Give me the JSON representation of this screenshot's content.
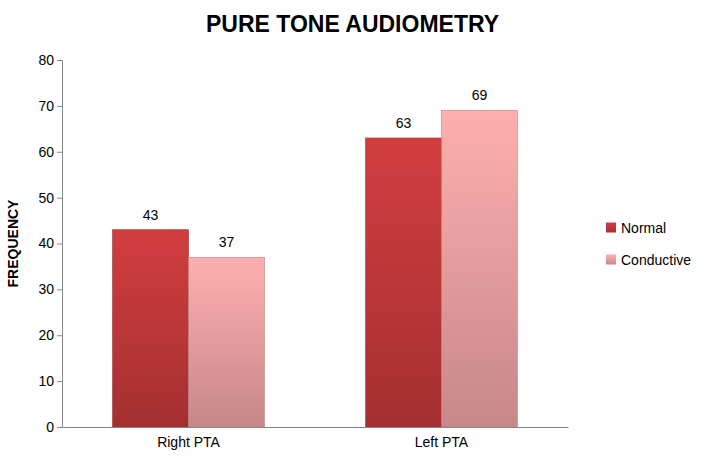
{
  "chart_data": {
    "type": "bar",
    "title": "PURE TONE AUDIOMETRY",
    "y_label": "FREQUENCY",
    "categories": [
      "Right PTA",
      "Left PTA"
    ],
    "series": [
      {
        "name": "Normal",
        "color": "#c0383a",
        "values": [
          43,
          63
        ]
      },
      {
        "name": "Conductive",
        "color": "#e8a0a0",
        "values": [
          37,
          69
        ]
      }
    ],
    "ylim": [
      0,
      80
    ],
    "yticks": [
      0,
      10,
      20,
      30,
      40,
      50,
      60,
      70,
      80
    ],
    "data_labels": true,
    "legend": "right",
    "grid": false
  }
}
